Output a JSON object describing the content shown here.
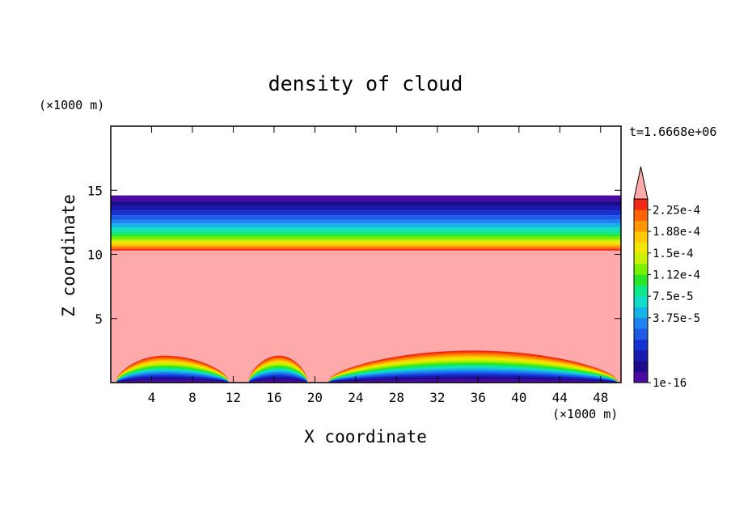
{
  "chart_data": {
    "type": "heatmap",
    "title": "density of cloud",
    "xlabel": "X coordinate",
    "ylabel": "Z coordinate",
    "x_unit": "(×1000 m)",
    "y_unit": "(×1000 m)",
    "time_label": "t=1.6668e+06",
    "xlim": [
      0,
      50
    ],
    "ylim": [
      0,
      20
    ],
    "x_ticks": [
      4,
      8,
      12,
      16,
      20,
      24,
      28,
      32,
      36,
      40,
      44,
      48
    ],
    "y_ticks": [
      5,
      10,
      15
    ],
    "colorbar": {
      "labels": [
        "2.25e-4",
        "1.88e-4",
        "1.5e-4",
        "1.12e-4",
        "7.5e-5",
        "3.75e-5",
        "1e-16"
      ],
      "colors": [
        "#4a0aa0",
        "#1e0a8c",
        "#1a1ab0",
        "#1432d2",
        "#1e5ae6",
        "#1e82f0",
        "#14b4e6",
        "#10dcc8",
        "#10e68c",
        "#28e628",
        "#78f000",
        "#c8f000",
        "#f0e600",
        "#ffc800",
        "#ff9600",
        "#ff6400",
        "#f02814",
        "#ffaaaa"
      ],
      "extend_max": true
    },
    "fields": {
      "upper_cloud_base_z": 10.3,
      "upper_cloud_top_z": 14.6,
      "saturated_fill_color": "#ffaaaa",
      "lower_mounds": [
        {
          "x_start": 0.5,
          "x_end": 11.6,
          "peak_x": 5.2,
          "peak_z": 2.1
        },
        {
          "x_start": 13.5,
          "x_end": 19.3,
          "peak_x": 16.5,
          "peak_z": 2.1
        },
        {
          "x_start": 21.2,
          "x_end": 49.8,
          "peak_x": 35.5,
          "peak_z": 2.5
        }
      ]
    }
  }
}
